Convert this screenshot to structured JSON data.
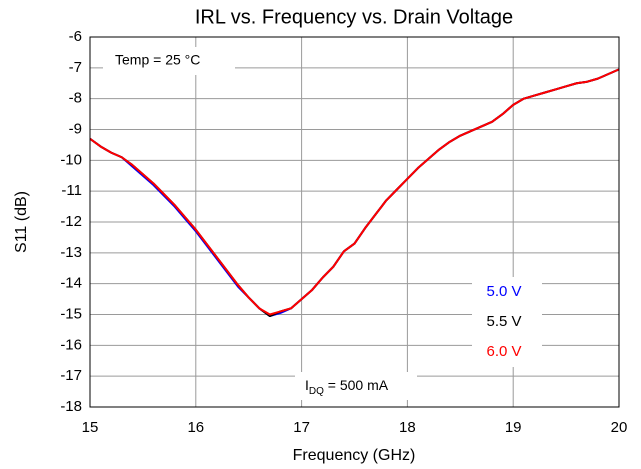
{
  "chart_data": {
    "type": "line",
    "title": "IRL vs. Frequency vs. Drain Voltage",
    "xlabel": "Frequency (GHz)",
    "ylabel": "S11 (dB)",
    "annotation_temp": "Temp = 25 °C",
    "annotation_current": [
      "I",
      "DQ",
      " = 500 mA"
    ],
    "x": [
      15.0,
      15.1,
      15.2,
      15.3,
      15.4,
      15.5,
      15.6,
      15.7,
      15.8,
      15.9,
      16.0,
      16.1,
      16.2,
      16.3,
      16.4,
      16.5,
      16.6,
      16.7,
      16.8,
      16.9,
      17.0,
      17.1,
      17.2,
      17.3,
      17.4,
      17.5,
      17.6,
      17.7,
      17.8,
      17.9,
      18.0,
      18.1,
      18.2,
      18.3,
      18.4,
      18.5,
      18.6,
      18.7,
      18.8,
      18.9,
      19.0,
      19.1,
      19.2,
      19.3,
      19.4,
      19.5,
      19.6,
      19.7,
      19.8,
      19.9,
      20.0
    ],
    "series": [
      {
        "name": "5.0 V",
        "color": "#0000ff",
        "values": [
          -9.3,
          -9.55,
          -9.75,
          -9.9,
          -10.2,
          -10.5,
          -10.8,
          -11.15,
          -11.5,
          -11.9,
          -12.3,
          -12.75,
          -13.2,
          -13.65,
          -14.1,
          -14.45,
          -14.8,
          -15.05,
          -14.95,
          -14.8,
          -14.5,
          -14.2,
          -13.8,
          -13.45,
          -12.95,
          -12.7,
          -12.2,
          -11.75,
          -11.3,
          -10.95,
          -10.6,
          -10.25,
          -9.95,
          -9.65,
          -9.4,
          -9.2,
          -9.05,
          -8.9,
          -8.75,
          -8.5,
          -8.2,
          -8.0,
          -7.9,
          -7.8,
          -7.7,
          -7.6,
          -7.5,
          -7.45,
          -7.35,
          -7.2,
          -7.05
        ]
      },
      {
        "name": "5.5 V",
        "color": "#000000",
        "values": [
          -9.3,
          -9.55,
          -9.75,
          -9.9,
          -10.15,
          -10.45,
          -10.75,
          -11.1,
          -11.45,
          -11.85,
          -12.25,
          -12.7,
          -13.15,
          -13.6,
          -14.05,
          -14.45,
          -14.8,
          -15.05,
          -14.9,
          -14.8,
          -14.5,
          -14.2,
          -13.8,
          -13.45,
          -12.95,
          -12.7,
          -12.2,
          -11.75,
          -11.3,
          -10.95,
          -10.6,
          -10.25,
          -9.95,
          -9.65,
          -9.4,
          -9.2,
          -9.05,
          -8.9,
          -8.75,
          -8.5,
          -8.2,
          -8.0,
          -7.9,
          -7.8,
          -7.7,
          -7.6,
          -7.5,
          -7.45,
          -7.35,
          -7.2,
          -7.05
        ]
      },
      {
        "name": "6.0 V",
        "color": "#ff0000",
        "values": [
          -9.3,
          -9.55,
          -9.75,
          -9.9,
          -10.15,
          -10.45,
          -10.75,
          -11.1,
          -11.45,
          -11.85,
          -12.25,
          -12.7,
          -13.15,
          -13.6,
          -14.05,
          -14.45,
          -14.8,
          -15.0,
          -14.9,
          -14.8,
          -14.5,
          -14.2,
          -13.8,
          -13.45,
          -12.95,
          -12.7,
          -12.2,
          -11.75,
          -11.3,
          -10.95,
          -10.6,
          -10.25,
          -9.95,
          -9.65,
          -9.4,
          -9.2,
          -9.05,
          -8.9,
          -8.75,
          -8.5,
          -8.2,
          -8.0,
          -7.9,
          -7.8,
          -7.7,
          -7.6,
          -7.5,
          -7.45,
          -7.35,
          -7.2,
          -7.05
        ]
      }
    ],
    "xlim": [
      15,
      20
    ],
    "xticks": [
      15,
      16,
      17,
      18,
      19,
      20
    ],
    "ylim": [
      -18,
      -6
    ],
    "yticks": [
      -6,
      -7,
      -8,
      -9,
      -10,
      -11,
      -12,
      -13,
      -14,
      -15,
      -16,
      -17,
      -18
    ],
    "grid": true
  }
}
